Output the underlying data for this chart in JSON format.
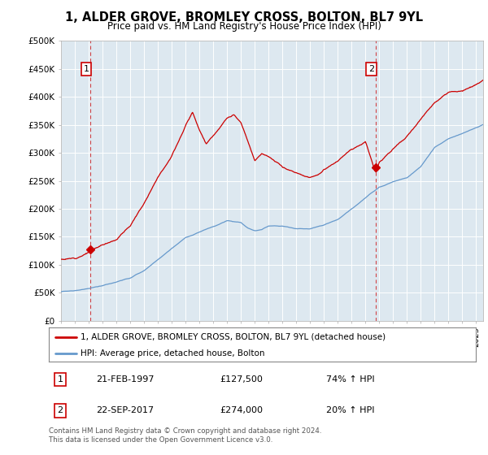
{
  "title": "1, ALDER GROVE, BROMLEY CROSS, BOLTON, BL7 9YL",
  "subtitle": "Price paid vs. HM Land Registry's House Price Index (HPI)",
  "ylim": [
    0,
    500000
  ],
  "xlim_start": 1995.0,
  "xlim_end": 2025.5,
  "sale1_date": 1997.13,
  "sale1_price": 127500,
  "sale2_date": 2017.73,
  "sale2_price": 274000,
  "legend_line1": "1, ALDER GROVE, BROMLEY CROSS, BOLTON, BL7 9YL (detached house)",
  "legend_line2": "HPI: Average price, detached house, Bolton",
  "annotation1_label": "1",
  "annotation1_date": "21-FEB-1997",
  "annotation1_price": "£127,500",
  "annotation1_hpi": "74% ↑ HPI",
  "annotation2_label": "2",
  "annotation2_date": "22-SEP-2017",
  "annotation2_price": "£274,000",
  "annotation2_hpi": "20% ↑ HPI",
  "copyright_text": "Contains HM Land Registry data © Crown copyright and database right 2024.\nThis data is licensed under the Open Government Licence v3.0.",
  "red_color": "#cc0000",
  "blue_color": "#6699cc",
  "background_plot": "#dde8f0",
  "background_fig": "#ffffff",
  "grid_color": "#ffffff",
  "dashed_line_color": "#cc0000",
  "hpi_keypoints": [
    [
      1995.0,
      52000
    ],
    [
      1996.0,
      54000
    ],
    [
      1997.0,
      57000
    ],
    [
      1998.0,
      62000
    ],
    [
      1999.0,
      68000
    ],
    [
      2000.0,
      76000
    ],
    [
      2001.0,
      88000
    ],
    [
      2002.0,
      108000
    ],
    [
      2003.0,
      128000
    ],
    [
      2004.0,
      148000
    ],
    [
      2005.0,
      158000
    ],
    [
      2006.0,
      168000
    ],
    [
      2007.0,
      178000
    ],
    [
      2008.0,
      175000
    ],
    [
      2008.5,
      165000
    ],
    [
      2009.0,
      160000
    ],
    [
      2009.5,
      162000
    ],
    [
      2010.0,
      168000
    ],
    [
      2011.0,
      168000
    ],
    [
      2012.0,
      163000
    ],
    [
      2013.0,
      163000
    ],
    [
      2014.0,
      170000
    ],
    [
      2015.0,
      180000
    ],
    [
      2016.0,
      198000
    ],
    [
      2017.0,
      218000
    ],
    [
      2018.0,
      238000
    ],
    [
      2019.0,
      248000
    ],
    [
      2020.0,
      255000
    ],
    [
      2021.0,
      275000
    ],
    [
      2022.0,
      310000
    ],
    [
      2023.0,
      325000
    ],
    [
      2024.0,
      335000
    ],
    [
      2025.5,
      350000
    ]
  ],
  "red_keypoints": [
    [
      1995.0,
      110000
    ],
    [
      1996.0,
      112000
    ],
    [
      1997.13,
      127500
    ],
    [
      1998.0,
      138000
    ],
    [
      1999.0,
      150000
    ],
    [
      2000.0,
      175000
    ],
    [
      2001.0,
      215000
    ],
    [
      2002.0,
      265000
    ],
    [
      2003.0,
      305000
    ],
    [
      2004.0,
      360000
    ],
    [
      2004.5,
      385000
    ],
    [
      2005.0,
      355000
    ],
    [
      2005.5,
      330000
    ],
    [
      2006.0,
      345000
    ],
    [
      2006.5,
      360000
    ],
    [
      2007.0,
      375000
    ],
    [
      2007.5,
      380000
    ],
    [
      2008.0,
      365000
    ],
    [
      2008.5,
      330000
    ],
    [
      2009.0,
      295000
    ],
    [
      2009.5,
      310000
    ],
    [
      2010.0,
      305000
    ],
    [
      2010.5,
      295000
    ],
    [
      2011.0,
      285000
    ],
    [
      2011.5,
      280000
    ],
    [
      2012.0,
      275000
    ],
    [
      2012.5,
      270000
    ],
    [
      2013.0,
      268000
    ],
    [
      2013.5,
      272000
    ],
    [
      2014.0,
      280000
    ],
    [
      2015.0,
      295000
    ],
    [
      2016.0,
      315000
    ],
    [
      2017.0,
      330000
    ],
    [
      2017.73,
      274000
    ],
    [
      2018.0,
      295000
    ],
    [
      2019.0,
      320000
    ],
    [
      2020.0,
      340000
    ],
    [
      2021.0,
      370000
    ],
    [
      2022.0,
      400000
    ],
    [
      2023.0,
      415000
    ],
    [
      2024.0,
      420000
    ],
    [
      2025.5,
      435000
    ]
  ]
}
